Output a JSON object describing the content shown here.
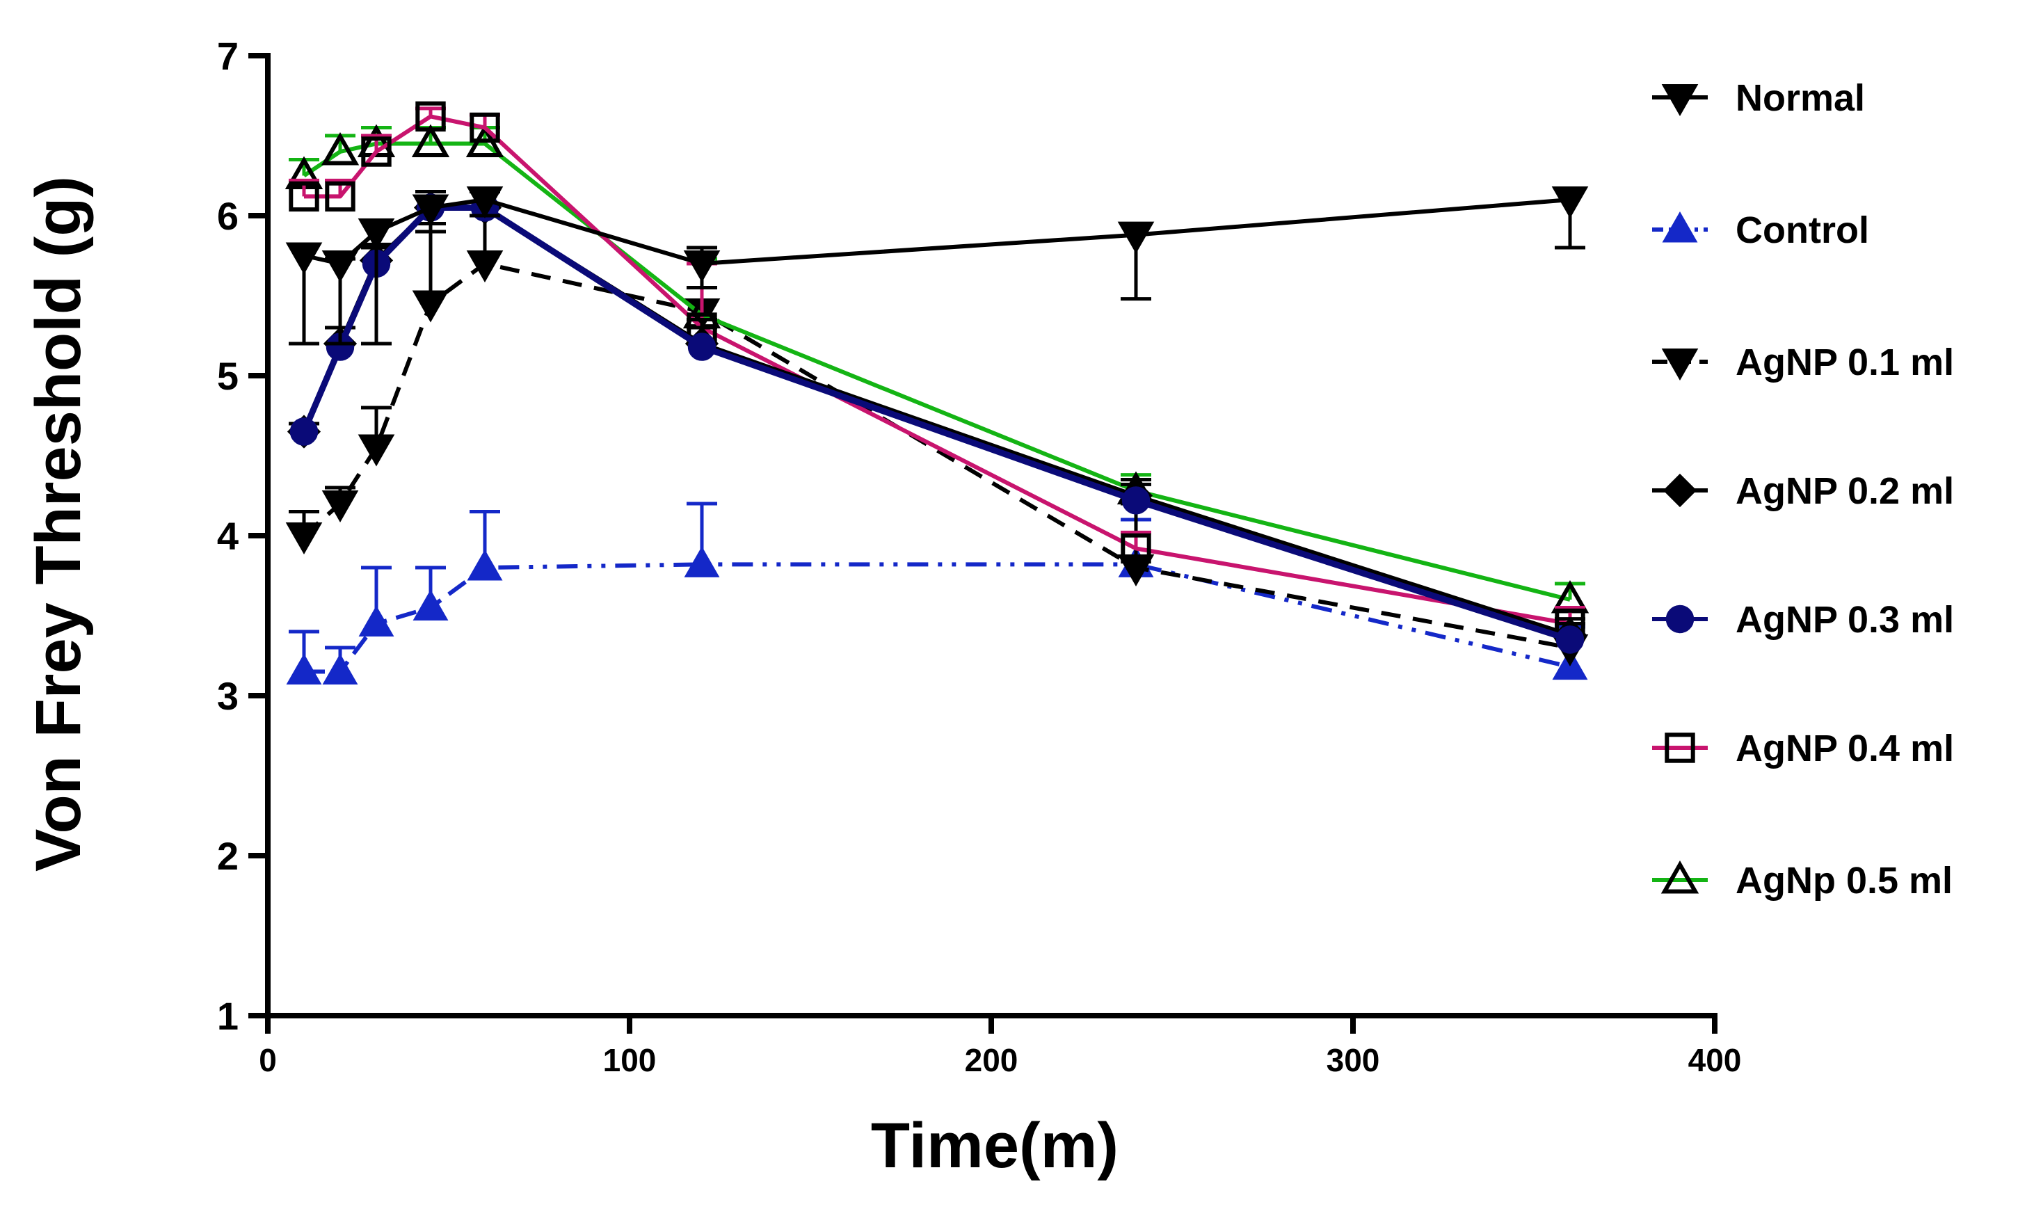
{
  "chart_data": {
    "type": "line",
    "title": "",
    "xlabel": "Time(m)",
    "ylabel": "Von Frey Threshold (g)",
    "xlim": [
      0,
      400
    ],
    "ylim": [
      1,
      7
    ],
    "xticks": [
      0,
      100,
      200,
      300,
      400
    ],
    "yticks": [
      1,
      2,
      3,
      4,
      5,
      6,
      7
    ],
    "grid": false,
    "legend_position": "right",
    "series": [
      {
        "name": "Normal",
        "color": "#000000",
        "dash": "solid",
        "marker": "triangle-down-filled",
        "x": [
          10,
          20,
          30,
          45,
          60,
          120,
          240,
          360
        ],
        "y": [
          5.75,
          5.7,
          5.9,
          6.05,
          6.1,
          5.7,
          5.88,
          6.1
        ],
        "err": [
          0.55,
          0.5,
          0.7,
          0.15,
          0.1,
          0.15,
          0.4,
          0.3
        ]
      },
      {
        "name": "Control",
        "color": "#1428c8",
        "dash": "dash-dot-dot",
        "marker": "triangle-up-filled",
        "x": [
          10,
          20,
          30,
          45,
          60,
          120,
          240,
          360
        ],
        "y": [
          3.15,
          3.15,
          3.45,
          3.55,
          3.8,
          3.82,
          3.82,
          3.18
        ],
        "err": [
          0.25,
          0.15,
          0.35,
          0.25,
          0.35,
          0.38,
          0.28,
          0.25
        ]
      },
      {
        "name": "AgNP 0.1 ml",
        "color": "#000000",
        "dash": "dashed",
        "marker": "triangle-down-filled",
        "x": [
          10,
          20,
          30,
          45,
          60,
          120,
          240,
          360
        ],
        "y": [
          4.0,
          4.2,
          4.55,
          5.45,
          5.7,
          5.4,
          3.8,
          3.3
        ],
        "err": [
          0.15,
          0.1,
          0.25,
          0.5,
          0.3,
          0.4,
          0.4,
          0.15
        ]
      },
      {
        "name": "AgNP 0.2 ml",
        "color": "#000000",
        "dash": "solid",
        "marker": "diamond-filled",
        "x": [
          10,
          20,
          30,
          45,
          60,
          120,
          240,
          360
        ],
        "y": [
          4.65,
          5.2,
          5.72,
          6.05,
          6.05,
          5.2,
          4.25,
          3.38
        ],
        "err": [
          0.05,
          0.1,
          0.1,
          0.1,
          0.1,
          0.15,
          0.1,
          0.1
        ]
      },
      {
        "name": "AgNP 0.3 ml",
        "color": "#0a0a78",
        "dash": "solid",
        "marker": "circle-filled",
        "x": [
          10,
          20,
          30,
          45,
          60,
          120,
          240,
          360
        ],
        "y": [
          4.65,
          5.18,
          5.7,
          6.05,
          6.05,
          5.18,
          4.22,
          3.35
        ],
        "err": [
          0.05,
          0.55,
          0.1,
          0.1,
          0.1,
          0.12,
          0.1,
          0.1
        ]
      },
      {
        "name": "AgNP 0.4 ml",
        "color": "#c8146e",
        "dash": "solid",
        "marker": "square-open",
        "x": [
          10,
          20,
          30,
          45,
          60,
          120,
          240,
          360
        ],
        "y": [
          6.12,
          6.12,
          6.4,
          6.62,
          6.55,
          5.3,
          3.92,
          3.45
        ],
        "err": [
          0.1,
          0.1,
          0.1,
          0.05,
          0.08,
          0.4,
          0.1,
          0.1
        ]
      },
      {
        "name": "AgNp 0.5 ml",
        "color": "#14b414",
        "dash": "solid",
        "marker": "triangle-up-open",
        "x": [
          10,
          20,
          30,
          45,
          60,
          120,
          240,
          360
        ],
        "y": [
          6.25,
          6.4,
          6.45,
          6.45,
          6.45,
          5.38,
          4.28,
          3.6
        ],
        "err": [
          0.1,
          0.1,
          0.1,
          0.1,
          0.1,
          0.35,
          0.1,
          0.1
        ]
      }
    ]
  }
}
